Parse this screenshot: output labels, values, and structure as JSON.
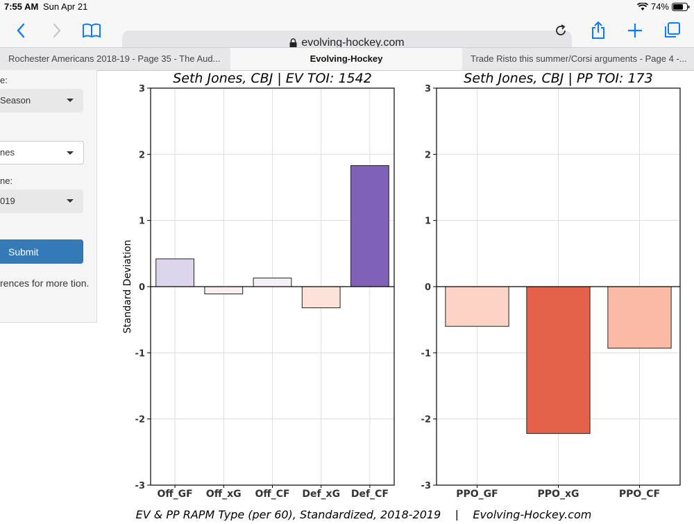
{
  "status_bar": {
    "time": "7:55 AM",
    "date": "Sun Apr 21",
    "battery": "74%"
  },
  "browser": {
    "url": "evolving-hockey.com",
    "tabs": [
      {
        "label": "Rochester Americans 2018-19 - Page 35 - The Aud..."
      },
      {
        "label": "Evolving-Hockey"
      },
      {
        "label": "Trade Risto this summer/Corsi arguments - Page 4 -..."
      }
    ]
  },
  "sidebar": {
    "label1": "e:",
    "select1": "Season",
    "select2": "nes",
    "label3": "ne:",
    "select3": "019",
    "submit_label": "Submit",
    "info_text": "rences for more tion."
  },
  "chart_data": [
    {
      "type": "bar",
      "title": "Seth Jones, CBJ  |  EV TOI: 1542",
      "ylabel": "Standard Deviation",
      "ylim": [
        -3,
        3
      ],
      "yticks": [
        "3",
        "2",
        "1",
        "0",
        "-1",
        "-2",
        "-3"
      ],
      "categories": [
        "Off_GF",
        "Off_xG",
        "Off_CF",
        "Def_xG",
        "Def_CF"
      ],
      "values": [
        0.42,
        -0.11,
        0.13,
        -0.32,
        1.83
      ],
      "colors": [
        "#dcd5eb",
        "#f8eeee",
        "#f4f0f7",
        "#fde2d8",
        "#7f62b8"
      ],
      "grid": true
    },
    {
      "type": "bar",
      "title": "Seth Jones, CBJ  |  PP TOI: 173",
      "ylim": [
        -3,
        3
      ],
      "yticks": [
        "3",
        "2",
        "1",
        "0",
        "-1",
        "-2",
        "-3"
      ],
      "categories": [
        "PPO_GF",
        "PPO_xG",
        "PPO_CF"
      ],
      "values": [
        -0.6,
        -2.22,
        -0.93
      ],
      "colors": [
        "#fcd3c4",
        "#e5614a",
        "#fbbaa6"
      ],
      "grid": true
    }
  ],
  "caption": "EV & PP RAPM Type (per 60), Standardized, 2018-2019    |    Evolving-Hockey.com"
}
